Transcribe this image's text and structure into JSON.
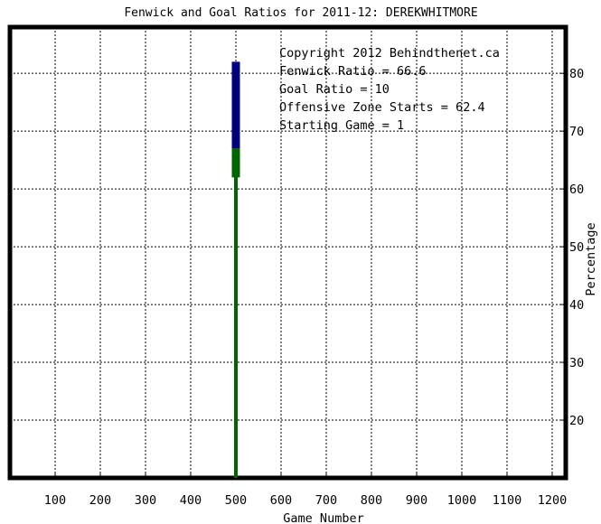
{
  "chart_data": {
    "type": "line",
    "title": "Fenwick and Goal Ratios for 2011-12: DEREKWHITMORE",
    "xlabel": "Game Number",
    "ylabel": "Percentage",
    "xlim": [
      0,
      1230
    ],
    "ylim": [
      10,
      88
    ],
    "x_ticks": [
      "100",
      "200",
      "300",
      "400",
      "500",
      "600",
      "700",
      "800",
      "900",
      "1000",
      "1100",
      "1200"
    ],
    "y_ticks": [
      "20",
      "30",
      "40",
      "50",
      "60",
      "70",
      "80"
    ],
    "grid": true,
    "axis_side_y": "right",
    "series": [
      {
        "name": "Offensive Zone Starts",
        "color": "#006400",
        "x": [
          500,
          500
        ],
        "y": [
          10,
          67
        ]
      },
      {
        "name": "Fenwick Ratio",
        "color": "#00007f",
        "x": [
          500,
          500
        ],
        "y": [
          67,
          82
        ]
      },
      {
        "name": "Goal Ratio",
        "color": "#7f5a3c",
        "x": [
          500
        ],
        "y": [
          10
        ]
      }
    ],
    "annotations": [
      {
        "text": "Copyright 2012 Behindthenet.ca",
        "color": "#000000"
      },
      {
        "text": "Fenwick Ratio = 66.6",
        "color": "#00007f"
      },
      {
        "text": "Goal Ratio = 10",
        "color": "#7f5a3c"
      },
      {
        "text": "Offensive Zone Starts = 62.4",
        "color": "#006400"
      },
      {
        "text": "Starting Game = 1",
        "color": "#000000"
      }
    ]
  }
}
